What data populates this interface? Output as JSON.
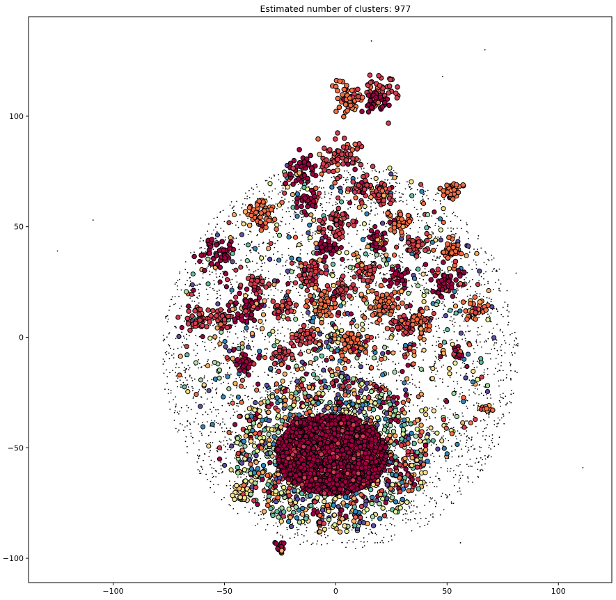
{
  "chart_data": {
    "type": "scatter",
    "title": "Estimated number of clusters: 977",
    "xlabel": "",
    "ylabel": "",
    "xlim": [
      -138,
      124
    ],
    "ylim": [
      -111,
      145
    ],
    "xticks": [
      -100,
      -50,
      0,
      50,
      100
    ],
    "yticks": [
      -100,
      -50,
      0,
      50,
      100
    ],
    "grid": false,
    "legend": "none",
    "colormap": "Spectral",
    "cluster_colors": [
      "#9e0142",
      "#d53e4f",
      "#f46d43",
      "#fdae61",
      "#fee08b",
      "#e6f598",
      "#abdda4",
      "#66c2a5",
      "#3288bd",
      "#5e4fa2"
    ],
    "noise_color": "#000000",
    "edge_color": "#000000",
    "noise_cloud": {
      "center": [
        2,
        -8
      ],
      "radius_x": 80,
      "radius_y": 88
    },
    "dense_core": {
      "center": [
        -2,
        -53
      ],
      "radius_x": 25,
      "radius_y": 18,
      "color": "#9e0142"
    },
    "clusters": [
      {
        "x": 2,
        "y": 81,
        "size": 4,
        "color": "#d53e4f"
      },
      {
        "x": -16,
        "y": 76,
        "size": 3,
        "color": "#9e0142"
      },
      {
        "x": 6,
        "y": 108,
        "size": 3,
        "color": "#f46d43"
      },
      {
        "x": 21,
        "y": 111,
        "size": 3,
        "color": "#d53e4f"
      },
      {
        "x": 18,
        "y": 106,
        "size": 2,
        "color": "#9e0142"
      },
      {
        "x": 11,
        "y": 67,
        "size": 2,
        "color": "#d53e4f"
      },
      {
        "x": 21,
        "y": 64,
        "size": 2,
        "color": "#d53e4f"
      },
      {
        "x": 52,
        "y": 66,
        "size": 2,
        "color": "#f46d43"
      },
      {
        "x": -53,
        "y": 39,
        "size": 3,
        "color": "#9e0142"
      },
      {
        "x": -33,
        "y": 56,
        "size": 3,
        "color": "#f46d43"
      },
      {
        "x": -12,
        "y": 62,
        "size": 2,
        "color": "#9e0142"
      },
      {
        "x": 1,
        "y": 51,
        "size": 3,
        "color": "#d53e4f"
      },
      {
        "x": 18,
        "y": 43,
        "size": 2,
        "color": "#9e0142"
      },
      {
        "x": 29,
        "y": 53,
        "size": 2,
        "color": "#f46d43"
      },
      {
        "x": -4,
        "y": 41,
        "size": 2,
        "color": "#9e0142"
      },
      {
        "x": 36,
        "y": 42,
        "size": 2,
        "color": "#d53e4f"
      },
      {
        "x": 50,
        "y": 25,
        "size": 3,
        "color": "#9e0142"
      },
      {
        "x": 28,
        "y": 27,
        "size": 2,
        "color": "#9e0142"
      },
      {
        "x": -35,
        "y": 25,
        "size": 2,
        "color": "#d53e4f"
      },
      {
        "x": -11,
        "y": 28,
        "size": 3,
        "color": "#d53e4f"
      },
      {
        "x": 14,
        "y": 30,
        "size": 2,
        "color": "#d53e4f"
      },
      {
        "x": -40,
        "y": 14,
        "size": 3,
        "color": "#9e0142"
      },
      {
        "x": -24,
        "y": 12,
        "size": 2,
        "color": "#d53e4f"
      },
      {
        "x": -5,
        "y": 14,
        "size": 3,
        "color": "#f46d43"
      },
      {
        "x": 20,
        "y": 14,
        "size": 3,
        "color": "#f46d43"
      },
      {
        "x": 3,
        "y": 22,
        "size": 2,
        "color": "#d53e4f"
      },
      {
        "x": -63,
        "y": 8,
        "size": 2,
        "color": "#d53e4f"
      },
      {
        "x": 7,
        "y": -2,
        "size": 3,
        "color": "#f46d43"
      },
      {
        "x": -14,
        "y": 0,
        "size": 2,
        "color": "#d53e4f"
      },
      {
        "x": 30,
        "y": 5,
        "size": 2,
        "color": "#d53e4f"
      },
      {
        "x": 38,
        "y": 7,
        "size": 2,
        "color": "#f46d43"
      },
      {
        "x": 63,
        "y": 13,
        "size": 2,
        "color": "#f46d43"
      },
      {
        "x": -40,
        "y": -11,
        "size": 2,
        "color": "#9e0142"
      },
      {
        "x": -24,
        "y": -8,
        "size": 2,
        "color": "#d53e4f"
      },
      {
        "x": 55,
        "y": -7,
        "size": 1,
        "color": "#9e0142"
      },
      {
        "x": 52,
        "y": 40,
        "size": 2,
        "color": "#f46d43"
      },
      {
        "x": -52,
        "y": 9,
        "size": 2,
        "color": "#d53e4f"
      },
      {
        "x": -42,
        "y": -70,
        "size": 2,
        "color": "#fee08b"
      },
      {
        "x": 67,
        "y": -32,
        "size": 1,
        "color": "#f46d43"
      },
      {
        "x": -25,
        "y": -95,
        "size": 1,
        "color": "#9e0142"
      }
    ]
  }
}
